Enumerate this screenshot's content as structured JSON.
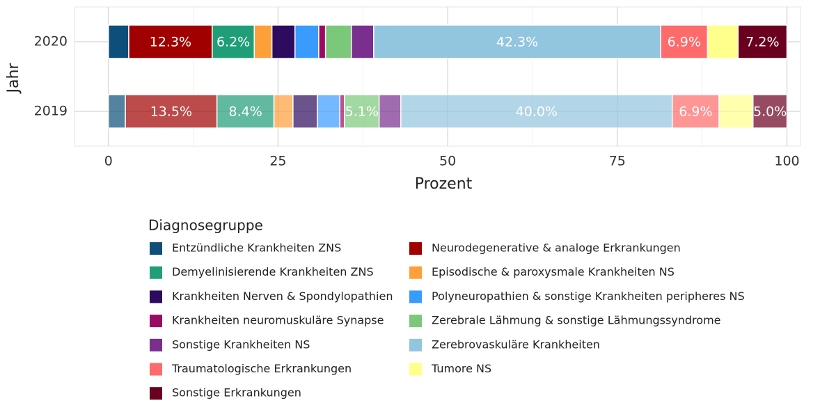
{
  "chart_data": {
    "type": "stacked_barh",
    "x_label": "Prozent",
    "y_label": "Jahr",
    "legend_title": "Diagnosegruppe",
    "categories": [
      "2019",
      "2020"
    ],
    "category_opacity": [
      0.7,
      1
    ],
    "xlim": [
      -5,
      102
    ],
    "xticks": [
      0,
      25,
      50,
      75,
      100
    ],
    "grid": true,
    "series": [
      {
        "name": "Entzündliche Krankheiten ZNS",
        "color": "#0d4f7a",
        "values": [
          2.5,
          3.0
        ],
        "value_labels": [
          null,
          null
        ]
      },
      {
        "name": "Neurodegenerative & analoge Erkrankungen",
        "color": "#a00000",
        "values": [
          13.5,
          12.3
        ],
        "value_labels": [
          "13.5%",
          "12.3%"
        ]
      },
      {
        "name": "Demyelinisierende Krankheiten ZNS",
        "color": "#1f9e78",
        "values": [
          8.4,
          6.2
        ],
        "value_labels": [
          "8.4%",
          "6.2%"
        ]
      },
      {
        "name": "Episodische & paroxysmale Krankheiten NS",
        "color": "#ff9f3a",
        "values": [
          2.8,
          2.6
        ],
        "value_labels": [
          null,
          null
        ]
      },
      {
        "name": "Krankheiten Nerven & Spondylopathien",
        "color": "#2d0b5e",
        "values": [
          3.6,
          3.4
        ],
        "value_labels": [
          null,
          null
        ]
      },
      {
        "name": "Polyneuropathien & sonstige Krankheiten peripheres NS",
        "color": "#3a9bff",
        "values": [
          3.3,
          3.5
        ],
        "value_labels": [
          null,
          null
        ]
      },
      {
        "name": "Krankheiten neuromuskuläre Synapse",
        "color": "#9b0a62",
        "values": [
          0.7,
          1.0
        ],
        "value_labels": [
          null,
          null
        ]
      },
      {
        "name": "Zerebrale Lähmung & sonstige Lähmungssyndrome",
        "color": "#7cc87a",
        "values": [
          5.1,
          3.8
        ],
        "value_labels": [
          "5.1%",
          null
        ]
      },
      {
        "name": "Sonstige Krankheiten NS",
        "color": "#7a2e8e",
        "values": [
          3.2,
          3.3
        ],
        "value_labels": [
          null,
          null
        ]
      },
      {
        "name": "Zerebrovaskuläre Krankheiten",
        "color": "#92c5de",
        "values": [
          40.0,
          42.3
        ],
        "value_labels": [
          "40.0%",
          "42.3%"
        ]
      },
      {
        "name": "Traumatologische Erkrankungen",
        "color": "#ff6b6b",
        "values": [
          6.9,
          6.9
        ],
        "value_labels": [
          "6.9%",
          "6.9%"
        ]
      },
      {
        "name": "Tumore NS",
        "color": "#ffff8c",
        "values": [
          5.0,
          4.5
        ],
        "value_labels": [
          null,
          null
        ]
      },
      {
        "name": "Sonstige Erkrankungen",
        "color": "#6a0020",
        "values": [
          5.0,
          7.2
        ],
        "value_labels": [
          "5.0%",
          "7.2%"
        ]
      }
    ]
  }
}
